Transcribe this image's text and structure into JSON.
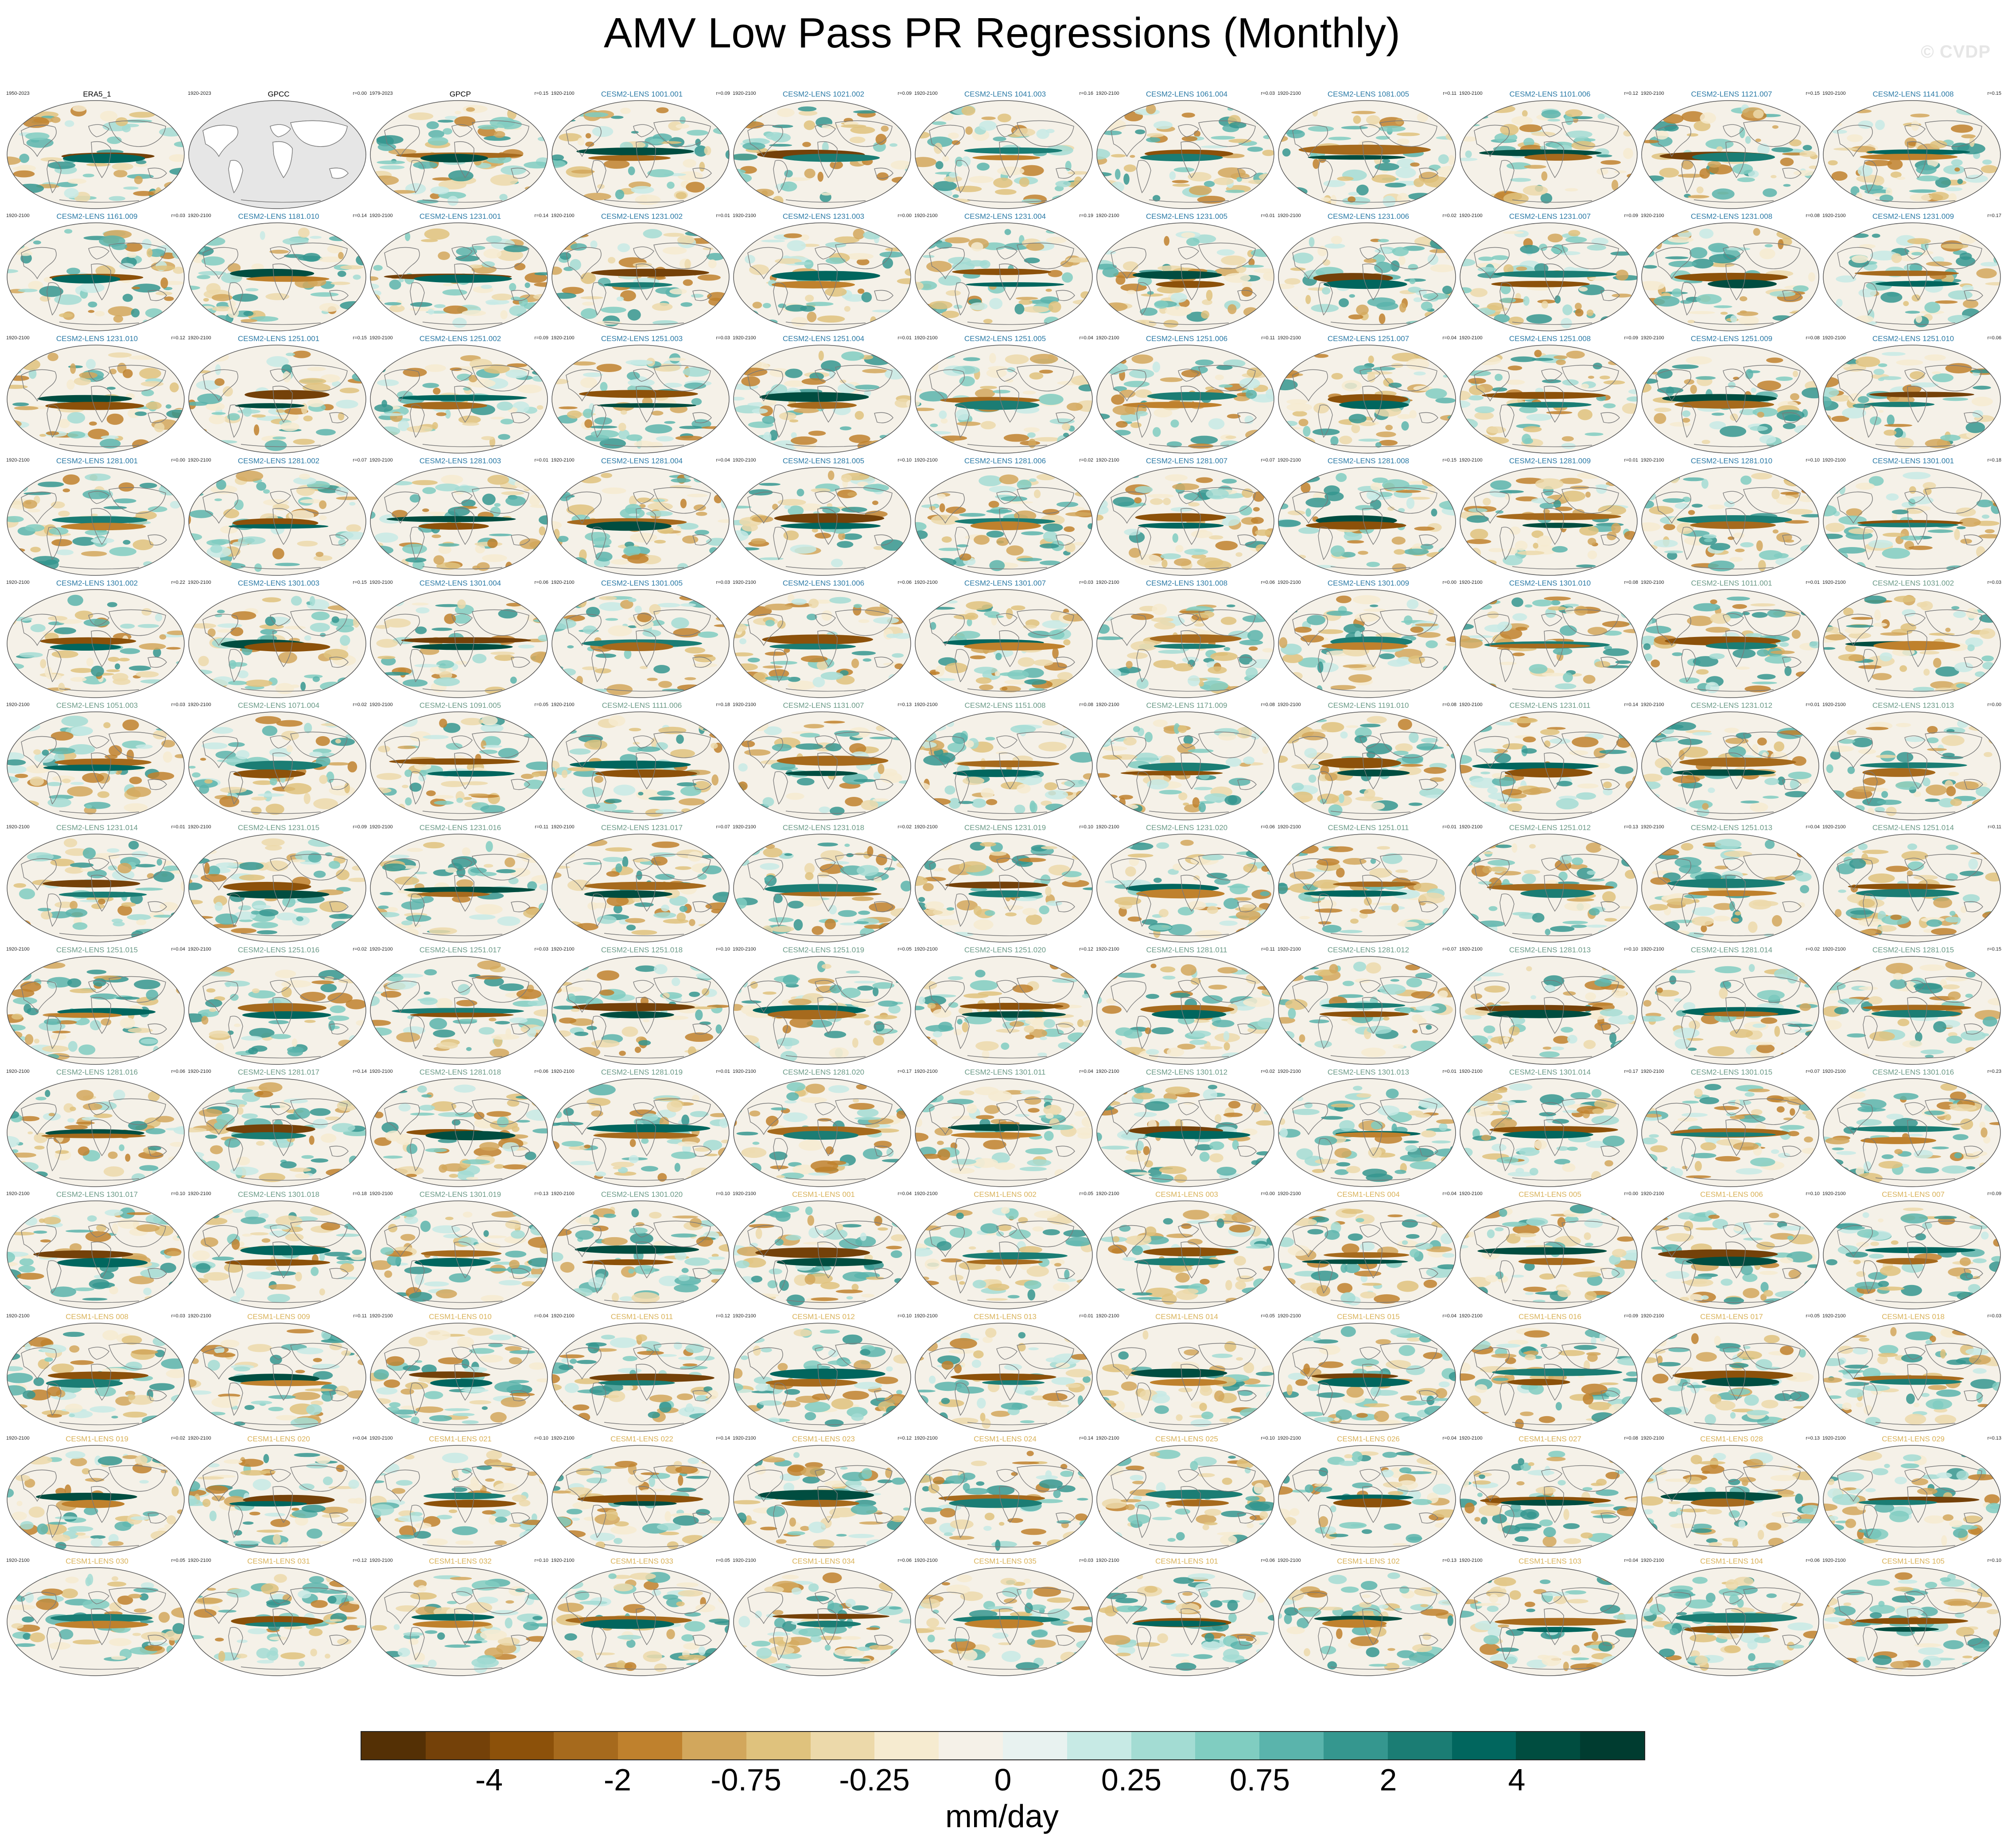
{
  "title": "AMV Low Pass PR Regressions (Monthly)",
  "watermark": "© CVDP",
  "units": "mm/day",
  "colorbar": {
    "colors": [
      "#543005",
      "#744109",
      "#8c510a",
      "#a66a1d",
      "#bf812d",
      "#d2a75c",
      "#dfc27d",
      "#ecd9aa",
      "#f6ebd0",
      "#f5f1e8",
      "#e8f2f0",
      "#c7eae5",
      "#a3dcd3",
      "#80cdc1",
      "#5ab4ac",
      "#35978f",
      "#1b7d74",
      "#01665e",
      "#004d40",
      "#003c30"
    ],
    "tick_labels": [
      "-4",
      "-2",
      "-0.75",
      "-0.25",
      "0",
      "0.25",
      "0.75",
      "2",
      "4"
    ]
  },
  "colors": {
    "obs_title": "#000000",
    "cesm2_a": "#2b7aa6",
    "cesm2_b": "#6b9a87",
    "cesm1": "#d9b25a",
    "land": "#7a7a7a",
    "missing": "#e6e6e6"
  },
  "panels": [
    {
      "period": "1950-2023",
      "title": "ERA5_1",
      "r": "",
      "group": "obs"
    },
    {
      "period": "1920-2023",
      "title": "GPCC",
      "r": "r=0.00",
      "group": "obs",
      "missing": true
    },
    {
      "period": "1979-2023",
      "title": "GPCP",
      "r": "r=0.15",
      "group": "obs"
    },
    {
      "period": "1920-2100",
      "title": "CESM2-LENS 1001.001",
      "r": "r=0.09",
      "group": "cesm2_a"
    },
    {
      "period": "1920-2100",
      "title": "CESM2-LENS 1021.002",
      "r": "r=0.09",
      "group": "cesm2_a"
    },
    {
      "period": "1920-2100",
      "title": "CESM2-LENS 1041.003",
      "r": "r=0.16",
      "group": "cesm2_a"
    },
    {
      "period": "1920-2100",
      "title": "CESM2-LENS 1061.004",
      "r": "r=0.03",
      "group": "cesm2_a"
    },
    {
      "period": "1920-2100",
      "title": "CESM2-LENS 1081.005",
      "r": "r=0.11",
      "group": "cesm2_a"
    },
    {
      "period": "1920-2100",
      "title": "CESM2-LENS 1101.006",
      "r": "r=0.12",
      "group": "cesm2_a"
    },
    {
      "period": "1920-2100",
      "title": "CESM2-LENS 1121.007",
      "r": "r=0.15",
      "group": "cesm2_a"
    },
    {
      "period": "1920-2100",
      "title": "CESM2-LENS 1141.008",
      "r": "r=0.15",
      "group": "cesm2_a"
    },
    {
      "period": "1920-2100",
      "title": "CESM2-LENS 1161.009",
      "r": "r=0.03",
      "group": "cesm2_a"
    },
    {
      "period": "1920-2100",
      "title": "CESM2-LENS 1181.010",
      "r": "r=0.14",
      "group": "cesm2_a"
    },
    {
      "period": "1920-2100",
      "title": "CESM2-LENS 1231.001",
      "r": "r=0.14",
      "group": "cesm2_a"
    },
    {
      "period": "1920-2100",
      "title": "CESM2-LENS 1231.002",
      "r": "r=0.01",
      "group": "cesm2_a"
    },
    {
      "period": "1920-2100",
      "title": "CESM2-LENS 1231.003",
      "r": "r=0.00",
      "group": "cesm2_a"
    },
    {
      "period": "1920-2100",
      "title": "CESM2-LENS 1231.004",
      "r": "r=0.19",
      "group": "cesm2_a"
    },
    {
      "period": "1920-2100",
      "title": "CESM2-LENS 1231.005",
      "r": "r=0.01",
      "group": "cesm2_a"
    },
    {
      "period": "1920-2100",
      "title": "CESM2-LENS 1231.006",
      "r": "r=0.02",
      "group": "cesm2_a"
    },
    {
      "period": "1920-2100",
      "title": "CESM2-LENS 1231.007",
      "r": "r=0.09",
      "group": "cesm2_a"
    },
    {
      "period": "1920-2100",
      "title": "CESM2-LENS 1231.008",
      "r": "r=0.08",
      "group": "cesm2_a"
    },
    {
      "period": "1920-2100",
      "title": "CESM2-LENS 1231.009",
      "r": "r=0.17",
      "group": "cesm2_a"
    },
    {
      "period": "1920-2100",
      "title": "CESM2-LENS 1231.010",
      "r": "r=0.12",
      "group": "cesm2_a"
    },
    {
      "period": "1920-2100",
      "title": "CESM2-LENS 1251.001",
      "r": "r=0.15",
      "group": "cesm2_a"
    },
    {
      "period": "1920-2100",
      "title": "CESM2-LENS 1251.002",
      "r": "r=0.09",
      "group": "cesm2_a"
    },
    {
      "period": "1920-2100",
      "title": "CESM2-LENS 1251.003",
      "r": "r=0.03",
      "group": "cesm2_a"
    },
    {
      "period": "1920-2100",
      "title": "CESM2-LENS 1251.004",
      "r": "r=0.01",
      "group": "cesm2_a"
    },
    {
      "period": "1920-2100",
      "title": "CESM2-LENS 1251.005",
      "r": "r=0.04",
      "group": "cesm2_a"
    },
    {
      "period": "1920-2100",
      "title": "CESM2-LENS 1251.006",
      "r": "r=0.11",
      "group": "cesm2_a"
    },
    {
      "period": "1920-2100",
      "title": "CESM2-LENS 1251.007",
      "r": "r=0.04",
      "group": "cesm2_a"
    },
    {
      "period": "1920-2100",
      "title": "CESM2-LENS 1251.008",
      "r": "r=0.09",
      "group": "cesm2_a"
    },
    {
      "period": "1920-2100",
      "title": "CESM2-LENS 1251.009",
      "r": "r=0.08",
      "group": "cesm2_a"
    },
    {
      "period": "1920-2100",
      "title": "CESM2-LENS 1251.010",
      "r": "r=0.06",
      "group": "cesm2_a"
    },
    {
      "period": "1920-2100",
      "title": "CESM2-LENS 1281.001",
      "r": "r=0.00",
      "group": "cesm2_a"
    },
    {
      "period": "1920-2100",
      "title": "CESM2-LENS 1281.002",
      "r": "r=0.07",
      "group": "cesm2_a"
    },
    {
      "period": "1920-2100",
      "title": "CESM2-LENS 1281.003",
      "r": "r=0.01",
      "group": "cesm2_a"
    },
    {
      "period": "1920-2100",
      "title": "CESM2-LENS 1281.004",
      "r": "r=0.04",
      "group": "cesm2_a"
    },
    {
      "period": "1920-2100",
      "title": "CESM2-LENS 1281.005",
      "r": "r=0.10",
      "group": "cesm2_a"
    },
    {
      "period": "1920-2100",
      "title": "CESM2-LENS 1281.006",
      "r": "r=0.02",
      "group": "cesm2_a"
    },
    {
      "period": "1920-2100",
      "title": "CESM2-LENS 1281.007",
      "r": "r=0.07",
      "group": "cesm2_a"
    },
    {
      "period": "1920-2100",
      "title": "CESM2-LENS 1281.008",
      "r": "r=0.15",
      "group": "cesm2_a"
    },
    {
      "period": "1920-2100",
      "title": "CESM2-LENS 1281.009",
      "r": "r=0.01",
      "group": "cesm2_a"
    },
    {
      "period": "1920-2100",
      "title": "CESM2-LENS 1281.010",
      "r": "r=0.10",
      "group": "cesm2_a"
    },
    {
      "period": "1920-2100",
      "title": "CESM2-LENS 1301.001",
      "r": "r=0.18",
      "group": "cesm2_a"
    },
    {
      "period": "1920-2100",
      "title": "CESM2-LENS 1301.002",
      "r": "r=0.22",
      "group": "cesm2_a"
    },
    {
      "period": "1920-2100",
      "title": "CESM2-LENS 1301.003",
      "r": "r=0.15",
      "group": "cesm2_a"
    },
    {
      "period": "1920-2100",
      "title": "CESM2-LENS 1301.004",
      "r": "r=0.06",
      "group": "cesm2_a"
    },
    {
      "period": "1920-2100",
      "title": "CESM2-LENS 1301.005",
      "r": "r=0.03",
      "group": "cesm2_a"
    },
    {
      "period": "1920-2100",
      "title": "CESM2-LENS 1301.006",
      "r": "r=0.06",
      "group": "cesm2_a"
    },
    {
      "period": "1920-2100",
      "title": "CESM2-LENS 1301.007",
      "r": "r=0.03",
      "group": "cesm2_a"
    },
    {
      "period": "1920-2100",
      "title": "CESM2-LENS 1301.008",
      "r": "r=0.06",
      "group": "cesm2_a"
    },
    {
      "period": "1920-2100",
      "title": "CESM2-LENS 1301.009",
      "r": "r=0.00",
      "group": "cesm2_a"
    },
    {
      "period": "1920-2100",
      "title": "CESM2-LENS 1301.010",
      "r": "r=0.08",
      "group": "cesm2_a"
    },
    {
      "period": "1920-2100",
      "title": "CESM2-LENS 1011.001",
      "r": "r=0.01",
      "group": "cesm2_b"
    },
    {
      "period": "1920-2100",
      "title": "CESM2-LENS 1031.002",
      "r": "r=0.03",
      "group": "cesm2_b"
    },
    {
      "period": "1920-2100",
      "title": "CESM2-LENS 1051.003",
      "r": "r=0.03",
      "group": "cesm2_b"
    },
    {
      "period": "1920-2100",
      "title": "CESM2-LENS 1071.004",
      "r": "r=0.02",
      "group": "cesm2_b"
    },
    {
      "period": "1920-2100",
      "title": "CESM2-LENS 1091.005",
      "r": "r=0.05",
      "group": "cesm2_b"
    },
    {
      "period": "1920-2100",
      "title": "CESM2-LENS 1111.006",
      "r": "r=0.18",
      "group": "cesm2_b"
    },
    {
      "period": "1920-2100",
      "title": "CESM2-LENS 1131.007",
      "r": "r=0.13",
      "group": "cesm2_b"
    },
    {
      "period": "1920-2100",
      "title": "CESM2-LENS 1151.008",
      "r": "r=0.08",
      "group": "cesm2_b"
    },
    {
      "period": "1920-2100",
      "title": "CESM2-LENS 1171.009",
      "r": "r=0.08",
      "group": "cesm2_b"
    },
    {
      "period": "1920-2100",
      "title": "CESM2-LENS 1191.010",
      "r": "r=0.08",
      "group": "cesm2_b"
    },
    {
      "period": "1920-2100",
      "title": "CESM2-LENS 1231.011",
      "r": "r=0.14",
      "group": "cesm2_b"
    },
    {
      "period": "1920-2100",
      "title": "CESM2-LENS 1231.012",
      "r": "r=0.01",
      "group": "cesm2_b"
    },
    {
      "period": "1920-2100",
      "title": "CESM2-LENS 1231.013",
      "r": "r=0.00",
      "group": "cesm2_b"
    },
    {
      "period": "1920-2100",
      "title": "CESM2-LENS 1231.014",
      "r": "r=0.01",
      "group": "cesm2_b"
    },
    {
      "period": "1920-2100",
      "title": "CESM2-LENS 1231.015",
      "r": "r=0.09",
      "group": "cesm2_b"
    },
    {
      "period": "1920-2100",
      "title": "CESM2-LENS 1231.016",
      "r": "r=0.11",
      "group": "cesm2_b"
    },
    {
      "period": "1920-2100",
      "title": "CESM2-LENS 1231.017",
      "r": "r=0.07",
      "group": "cesm2_b"
    },
    {
      "period": "1920-2100",
      "title": "CESM2-LENS 1231.018",
      "r": "r=0.02",
      "group": "cesm2_b"
    },
    {
      "period": "1920-2100",
      "title": "CESM2-LENS 1231.019",
      "r": "r=0.10",
      "group": "cesm2_b"
    },
    {
      "period": "1920-2100",
      "title": "CESM2-LENS 1231.020",
      "r": "r=0.06",
      "group": "cesm2_b"
    },
    {
      "period": "1920-2100",
      "title": "CESM2-LENS 1251.011",
      "r": "r=0.01",
      "group": "cesm2_b"
    },
    {
      "period": "1920-2100",
      "title": "CESM2-LENS 1251.012",
      "r": "r=0.13",
      "group": "cesm2_b"
    },
    {
      "period": "1920-2100",
      "title": "CESM2-LENS 1251.013",
      "r": "r=0.04",
      "group": "cesm2_b"
    },
    {
      "period": "1920-2100",
      "title": "CESM2-LENS 1251.014",
      "r": "r=0.11",
      "group": "cesm2_b"
    },
    {
      "period": "1920-2100",
      "title": "CESM2-LENS 1251.015",
      "r": "r=0.04",
      "group": "cesm2_b"
    },
    {
      "period": "1920-2100",
      "title": "CESM2-LENS 1251.016",
      "r": "r=0.02",
      "group": "cesm2_b"
    },
    {
      "period": "1920-2100",
      "title": "CESM2-LENS 1251.017",
      "r": "r=0.03",
      "group": "cesm2_b"
    },
    {
      "period": "1920-2100",
      "title": "CESM2-LENS 1251.018",
      "r": "r=0.10",
      "group": "cesm2_b"
    },
    {
      "period": "1920-2100",
      "title": "CESM2-LENS 1251.019",
      "r": "r=0.05",
      "group": "cesm2_b"
    },
    {
      "period": "1920-2100",
      "title": "CESM2-LENS 1251.020",
      "r": "r=0.12",
      "group": "cesm2_b"
    },
    {
      "period": "1920-2100",
      "title": "CESM2-LENS 1281.011",
      "r": "r=0.11",
      "group": "cesm2_b"
    },
    {
      "period": "1920-2100",
      "title": "CESM2-LENS 1281.012",
      "r": "r=0.07",
      "group": "cesm2_b"
    },
    {
      "period": "1920-2100",
      "title": "CESM2-LENS 1281.013",
      "r": "r=0.10",
      "group": "cesm2_b"
    },
    {
      "period": "1920-2100",
      "title": "CESM2-LENS 1281.014",
      "r": "r=0.02",
      "group": "cesm2_b"
    },
    {
      "period": "1920-2100",
      "title": "CESM2-LENS 1281.015",
      "r": "r=0.15",
      "group": "cesm2_b"
    },
    {
      "period": "1920-2100",
      "title": "CESM2-LENS 1281.016",
      "r": "r=0.06",
      "group": "cesm2_b"
    },
    {
      "period": "1920-2100",
      "title": "CESM2-LENS 1281.017",
      "r": "r=0.14",
      "group": "cesm2_b"
    },
    {
      "period": "1920-2100",
      "title": "CESM2-LENS 1281.018",
      "r": "r=0.06",
      "group": "cesm2_b"
    },
    {
      "period": "1920-2100",
      "title": "CESM2-LENS 1281.019",
      "r": "r=0.01",
      "group": "cesm2_b"
    },
    {
      "period": "1920-2100",
      "title": "CESM2-LENS 1281.020",
      "r": "r=0.17",
      "group": "cesm2_b"
    },
    {
      "period": "1920-2100",
      "title": "CESM2-LENS 1301.011",
      "r": "r=0.04",
      "group": "cesm2_b"
    },
    {
      "period": "1920-2100",
      "title": "CESM2-LENS 1301.012",
      "r": "r=0.02",
      "group": "cesm2_b"
    },
    {
      "period": "1920-2100",
      "title": "CESM2-LENS 1301.013",
      "r": "r=0.01",
      "group": "cesm2_b"
    },
    {
      "period": "1920-2100",
      "title": "CESM2-LENS 1301.014",
      "r": "r=0.17",
      "group": "cesm2_b"
    },
    {
      "period": "1920-2100",
      "title": "CESM2-LENS 1301.015",
      "r": "r=0.07",
      "group": "cesm2_b"
    },
    {
      "period": "1920-2100",
      "title": "CESM2-LENS 1301.016",
      "r": "r=0.23",
      "group": "cesm2_b"
    },
    {
      "period": "1920-2100",
      "title": "CESM2-LENS 1301.017",
      "r": "r=0.10",
      "group": "cesm2_b"
    },
    {
      "period": "1920-2100",
      "title": "CESM2-LENS 1301.018",
      "r": "r=0.18",
      "group": "cesm2_b"
    },
    {
      "period": "1920-2100",
      "title": "CESM2-LENS 1301.019",
      "r": "r=0.13",
      "group": "cesm2_b"
    },
    {
      "period": "1920-2100",
      "title": "CESM2-LENS 1301.020",
      "r": "r=0.10",
      "group": "cesm2_b"
    },
    {
      "period": "1920-2100",
      "title": "CESM1-LENS 001",
      "r": "r=0.04",
      "group": "cesm1"
    },
    {
      "period": "1920-2100",
      "title": "CESM1-LENS 002",
      "r": "r=0.05",
      "group": "cesm1"
    },
    {
      "period": "1920-2100",
      "title": "CESM1-LENS 003",
      "r": "r=0.00",
      "group": "cesm1"
    },
    {
      "period": "1920-2100",
      "title": "CESM1-LENS 004",
      "r": "r=0.04",
      "group": "cesm1"
    },
    {
      "period": "1920-2100",
      "title": "CESM1-LENS 005",
      "r": "r=0.00",
      "group": "cesm1"
    },
    {
      "period": "1920-2100",
      "title": "CESM1-LENS 006",
      "r": "r=0.10",
      "group": "cesm1"
    },
    {
      "period": "1920-2100",
      "title": "CESM1-LENS 007",
      "r": "r=0.09",
      "group": "cesm1"
    },
    {
      "period": "1920-2100",
      "title": "CESM1-LENS 008",
      "r": "r=0.03",
      "group": "cesm1"
    },
    {
      "period": "1920-2100",
      "title": "CESM1-LENS 009",
      "r": "r=0.11",
      "group": "cesm1"
    },
    {
      "period": "1920-2100",
      "title": "CESM1-LENS 010",
      "r": "r=0.04",
      "group": "cesm1"
    },
    {
      "period": "1920-2100",
      "title": "CESM1-LENS 011",
      "r": "r=0.12",
      "group": "cesm1"
    },
    {
      "period": "1920-2100",
      "title": "CESM1-LENS 012",
      "r": "r=0.10",
      "group": "cesm1"
    },
    {
      "period": "1920-2100",
      "title": "CESM1-LENS 013",
      "r": "r=0.01",
      "group": "cesm1"
    },
    {
      "period": "1920-2100",
      "title": "CESM1-LENS 014",
      "r": "r=0.05",
      "group": "cesm1"
    },
    {
      "period": "1920-2100",
      "title": "CESM1-LENS 015",
      "r": "r=0.04",
      "group": "cesm1"
    },
    {
      "period": "1920-2100",
      "title": "CESM1-LENS 016",
      "r": "r=0.09",
      "group": "cesm1"
    },
    {
      "period": "1920-2100",
      "title": "CESM1-LENS 017",
      "r": "r=0.05",
      "group": "cesm1"
    },
    {
      "period": "1920-2100",
      "title": "CESM1-LENS 018",
      "r": "r=0.03",
      "group": "cesm1"
    },
    {
      "period": "1920-2100",
      "title": "CESM1-LENS 019",
      "r": "r=0.02",
      "group": "cesm1"
    },
    {
      "period": "1920-2100",
      "title": "CESM1-LENS 020",
      "r": "r=0.04",
      "group": "cesm1"
    },
    {
      "period": "1920-2100",
      "title": "CESM1-LENS 021",
      "r": "r=0.10",
      "group": "cesm1"
    },
    {
      "period": "1920-2100",
      "title": "CESM1-LENS 022",
      "r": "r=0.14",
      "group": "cesm1"
    },
    {
      "period": "1920-2100",
      "title": "CESM1-LENS 023",
      "r": "r=0.12",
      "group": "cesm1"
    },
    {
      "period": "1920-2100",
      "title": "CESM1-LENS 024",
      "r": "r=0.14",
      "group": "cesm1"
    },
    {
      "period": "1920-2100",
      "title": "CESM1-LENS 025",
      "r": "r=0.10",
      "group": "cesm1"
    },
    {
      "period": "1920-2100",
      "title": "CESM1-LENS 026",
      "r": "r=0.04",
      "group": "cesm1"
    },
    {
      "period": "1920-2100",
      "title": "CESM1-LENS 027",
      "r": "r=0.08",
      "group": "cesm1"
    },
    {
      "period": "1920-2100",
      "title": "CESM1-LENS 028",
      "r": "r=0.13",
      "group": "cesm1"
    },
    {
      "period": "1920-2100",
      "title": "CESM1-LENS 029",
      "r": "r=0.13",
      "group": "cesm1"
    },
    {
      "period": "1920-2100",
      "title": "CESM1-LENS 030",
      "r": "r=0.05",
      "group": "cesm1"
    },
    {
      "period": "1920-2100",
      "title": "CESM1-LENS 031",
      "r": "r=0.12",
      "group": "cesm1"
    },
    {
      "period": "1920-2100",
      "title": "CESM1-LENS 032",
      "r": "r=0.10",
      "group": "cesm1"
    },
    {
      "period": "1920-2100",
      "title": "CESM1-LENS 033",
      "r": "r=0.05",
      "group": "cesm1"
    },
    {
      "period": "1920-2100",
      "title": "CESM1-LENS 034",
      "r": "r=0.06",
      "group": "cesm1"
    },
    {
      "period": "1920-2100",
      "title": "CESM1-LENS 035",
      "r": "r=0.03",
      "group": "cesm1"
    },
    {
      "period": "1920-2100",
      "title": "CESM1-LENS 101",
      "r": "r=0.06",
      "group": "cesm1"
    },
    {
      "period": "1920-2100",
      "title": "CESM1-LENS 102",
      "r": "r=0.13",
      "group": "cesm1"
    },
    {
      "period": "1920-2100",
      "title": "CESM1-LENS 103",
      "r": "r=0.04",
      "group": "cesm1"
    },
    {
      "period": "1920-2100",
      "title": "CESM1-LENS 104",
      "r": "r=0.06",
      "group": "cesm1"
    },
    {
      "period": "1920-2100",
      "title": "CESM1-LENS 105",
      "r": "r=0.10",
      "group": "cesm1"
    }
  ]
}
